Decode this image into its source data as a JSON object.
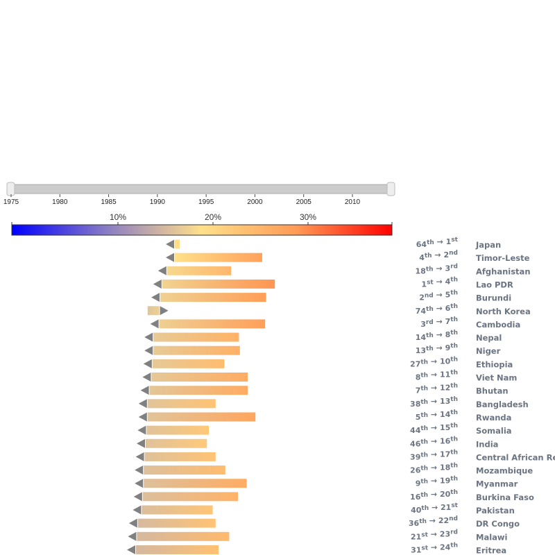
{
  "slider": {
    "ticks": [
      1975,
      1980,
      1985,
      1990,
      1995,
      2000,
      2005,
      2010
    ],
    "range": [
      1975,
      2013
    ]
  },
  "colorbar": {
    "ticks": [
      "10%",
      "20%",
      "30%"
    ],
    "domain": [
      0,
      0.4
    ],
    "tick_values": [
      0.1,
      0.2,
      0.3
    ],
    "colors": [
      "#0000ff",
      "#b89ec0",
      "#ffe08a",
      "#ff8a50",
      "#ff0000"
    ]
  },
  "chart_data": {
    "type": "bar",
    "direction_marker_color": "#808080",
    "rows": [
      {
        "country": "Japan",
        "rank_from_num": "64",
        "rank_from_suf": "th",
        "rank_to_num": "1",
        "rank_to_suf": "st",
        "start": 0.2,
        "end": 0.205,
        "direction": "left"
      },
      {
        "country": "Timor-Leste",
        "rank_from_num": "4",
        "rank_from_suf": "th",
        "rank_to_num": "2",
        "rank_to_suf": "nd",
        "start": 0.2,
        "end": 0.29,
        "direction": "left"
      },
      {
        "country": "Afghanistan",
        "rank_from_num": "18",
        "rank_from_suf": "th",
        "rank_to_num": "3",
        "rank_to_suf": "rd",
        "start": 0.192,
        "end": 0.258,
        "direction": "left"
      },
      {
        "country": "Lao PDR",
        "rank_from_num": "1",
        "rank_from_suf": "st",
        "rank_to_num": "4",
        "rank_to_suf": "th",
        "start": 0.187,
        "end": 0.303,
        "direction": "left"
      },
      {
        "country": "Burundi",
        "rank_from_num": "2",
        "rank_from_suf": "nd",
        "rank_to_num": "5",
        "rank_to_suf": "th",
        "start": 0.185,
        "end": 0.294,
        "direction": "left"
      },
      {
        "country": "North Korea",
        "rank_from_num": "74",
        "rank_from_suf": "th",
        "rank_to_num": "6",
        "rank_to_suf": "th",
        "start": 0.172,
        "end": 0.184,
        "direction": "right"
      },
      {
        "country": "Cambodia",
        "rank_from_num": "3",
        "rank_from_suf": "rd",
        "rank_to_num": "7",
        "rank_to_suf": "th",
        "start": 0.184,
        "end": 0.293,
        "direction": "left"
      },
      {
        "country": "Nepal",
        "rank_from_num": "14",
        "rank_from_suf": "th",
        "rank_to_num": "8",
        "rank_to_suf": "th",
        "start": 0.178,
        "end": 0.266,
        "direction": "left"
      },
      {
        "country": "Niger",
        "rank_from_num": "13",
        "rank_from_suf": "th",
        "rank_to_num": "9",
        "rank_to_suf": "th",
        "start": 0.178,
        "end": 0.267,
        "direction": "left"
      },
      {
        "country": "Ethiopia",
        "rank_from_num": "27",
        "rank_from_suf": "th",
        "rank_to_num": "10",
        "rank_to_suf": "th",
        "start": 0.177,
        "end": 0.251,
        "direction": "left"
      },
      {
        "country": "Viet Nam",
        "rank_from_num": "8",
        "rank_from_suf": "th",
        "rank_to_num": "11",
        "rank_to_suf": "th",
        "start": 0.176,
        "end": 0.275,
        "direction": "left"
      },
      {
        "country": "Bhutan",
        "rank_from_num": "7",
        "rank_from_suf": "th",
        "rank_to_num": "12",
        "rank_to_suf": "th",
        "start": 0.174,
        "end": 0.275,
        "direction": "left"
      },
      {
        "country": "Bangladesh",
        "rank_from_num": "38",
        "rank_from_suf": "th",
        "rank_to_num": "13",
        "rank_to_suf": "th",
        "start": 0.172,
        "end": 0.242,
        "direction": "left"
      },
      {
        "country": "Rwanda",
        "rank_from_num": "5",
        "rank_from_suf": "th",
        "rank_to_num": "14",
        "rank_to_suf": "th",
        "start": 0.172,
        "end": 0.283,
        "direction": "left"
      },
      {
        "country": "Somalia",
        "rank_from_num": "44",
        "rank_from_suf": "th",
        "rank_to_num": "15",
        "rank_to_suf": "th",
        "start": 0.171,
        "end": 0.235,
        "direction": "left"
      },
      {
        "country": "India",
        "rank_from_num": "46",
        "rank_from_suf": "th",
        "rank_to_num": "16",
        "rank_to_suf": "th",
        "start": 0.17,
        "end": 0.233,
        "direction": "left"
      },
      {
        "country": "Central African Rep",
        "rank_from_num": "39",
        "rank_from_suf": "th",
        "rank_to_num": "17",
        "rank_to_suf": "th",
        "start": 0.169,
        "end": 0.242,
        "direction": "left"
      },
      {
        "country": "Mozambique",
        "rank_from_num": "26",
        "rank_from_suf": "th",
        "rank_to_num": "18",
        "rank_to_suf": "th",
        "start": 0.168,
        "end": 0.252,
        "direction": "left"
      },
      {
        "country": "Myanmar",
        "rank_from_num": "9",
        "rank_from_suf": "th",
        "rank_to_num": "19",
        "rank_to_suf": "th",
        "start": 0.168,
        "end": 0.274,
        "direction": "left"
      },
      {
        "country": "Burkina Faso",
        "rank_from_num": "16",
        "rank_from_suf": "th",
        "rank_to_num": "20",
        "rank_to_suf": "th",
        "start": 0.167,
        "end": 0.265,
        "direction": "left"
      },
      {
        "country": "Pakistan",
        "rank_from_num": "40",
        "rank_from_suf": "th",
        "rank_to_num": "21",
        "rank_to_suf": "st",
        "start": 0.166,
        "end": 0.239,
        "direction": "left"
      },
      {
        "country": "DR Congo",
        "rank_from_num": "36",
        "rank_from_suf": "th",
        "rank_to_num": "22",
        "rank_to_suf": "nd",
        "start": 0.162,
        "end": 0.242,
        "direction": "left"
      },
      {
        "country": "Malawi",
        "rank_from_num": "21",
        "rank_from_suf": "st",
        "rank_to_num": "23",
        "rank_to_suf": "rd",
        "start": 0.161,
        "end": 0.256,
        "direction": "left"
      },
      {
        "country": "Eritrea",
        "rank_from_num": "31",
        "rank_from_suf": "st",
        "rank_to_num": "24",
        "rank_to_suf": "th",
        "start": 0.16,
        "end": 0.245,
        "direction": "left"
      }
    ]
  }
}
